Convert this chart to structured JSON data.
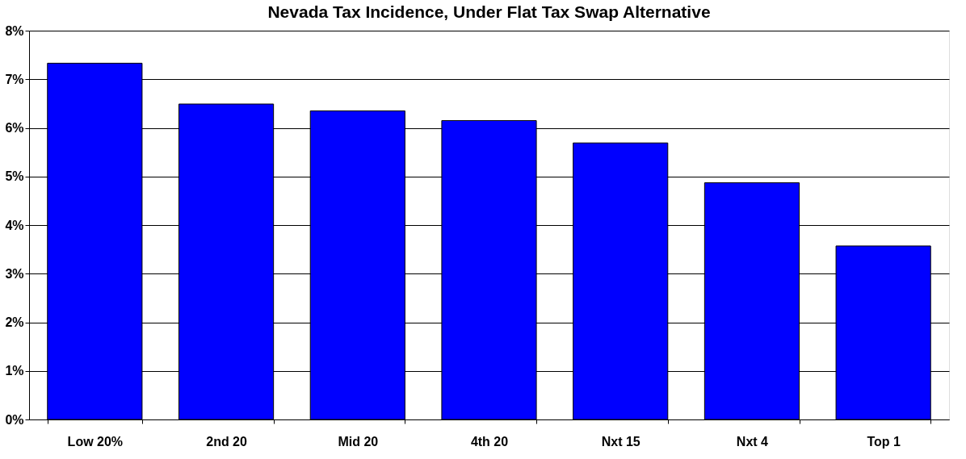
{
  "chart_data": {
    "type": "bar",
    "title": "Nevada Tax Incidence, Under Flat Tax Swap Alternative",
    "categories": [
      "Low 20%",
      "2nd 20",
      "Mid 20",
      "4th 20",
      "Nxt 15",
      "Nxt 4",
      "Top 1"
    ],
    "values": [
      7.33,
      6.49,
      6.35,
      6.15,
      5.69,
      4.87,
      3.57
    ],
    "color": "#0000ff",
    "ylim": [
      0,
      8
    ],
    "yticks": [
      {
        "value": 0,
        "label": "0%"
      },
      {
        "value": 1,
        "label": "1%"
      },
      {
        "value": 2,
        "label": "2%"
      },
      {
        "value": 3,
        "label": "3%"
      },
      {
        "value": 4,
        "label": "4%"
      },
      {
        "value": 5,
        "label": "5%"
      },
      {
        "value": 6,
        "label": "6%"
      },
      {
        "value": 7,
        "label": "7%"
      },
      {
        "value": 8,
        "label": "8%"
      }
    ],
    "grid": "y"
  }
}
